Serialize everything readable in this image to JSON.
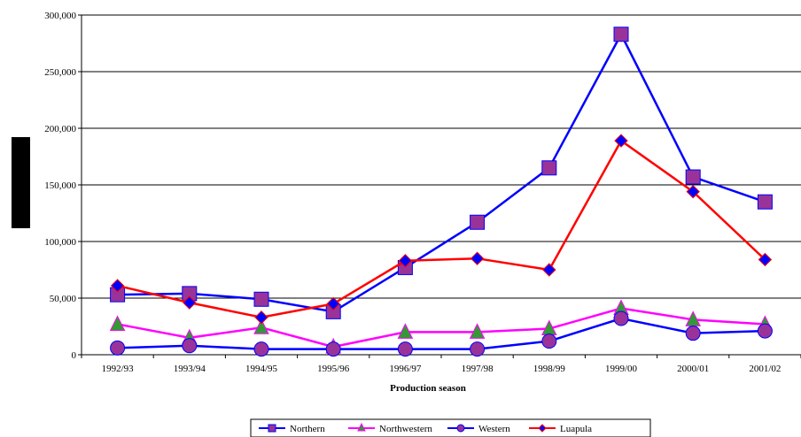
{
  "chart_data": {
    "type": "line",
    "title": "",
    "xlabel": "Production season",
    "ylabel": "",
    "ylim": [
      0,
      300000
    ],
    "yticks": [
      0,
      50000,
      100000,
      150000,
      200000,
      250000,
      300000
    ],
    "ytick_labels": [
      "0",
      "50,000",
      "100,000",
      "150,000",
      "200,000",
      "250,000",
      "300,000"
    ],
    "grid": "horizontal",
    "legend_position": "bottom",
    "categories": [
      "1992/93",
      "1993/94",
      "1994/95",
      "1995/96",
      "1996/97",
      "1997/98",
      "1998/99",
      "1999/00",
      "2000/01",
      "2001/02"
    ],
    "series": [
      {
        "name": "Northern",
        "line_color": "#0000FF",
        "marker": "square",
        "marker_color": "#993399",
        "values": [
          53000,
          54000,
          49000,
          38000,
          77000,
          117000,
          165000,
          283000,
          157000,
          135000
        ]
      },
      {
        "name": "Northwestern",
        "line_color": "#FF00FF",
        "marker": "triangle",
        "marker_color": "#339933",
        "values": [
          27000,
          15000,
          24000,
          7000,
          20000,
          20000,
          23000,
          41000,
          31000,
          27000
        ]
      },
      {
        "name": "Western",
        "line_color": "#0000FF",
        "marker": "circle",
        "marker_color": "#993399",
        "values": [
          6000,
          8000,
          5000,
          5000,
          5000,
          5000,
          12000,
          32000,
          19000,
          21000
        ]
      },
      {
        "name": "Luapula",
        "line_color": "#FF0000",
        "marker": "diamond",
        "marker_color": "#0000FF",
        "values": [
          61000,
          46000,
          33000,
          45000,
          83000,
          85000,
          75000,
          189000,
          144000,
          84000
        ]
      }
    ]
  }
}
